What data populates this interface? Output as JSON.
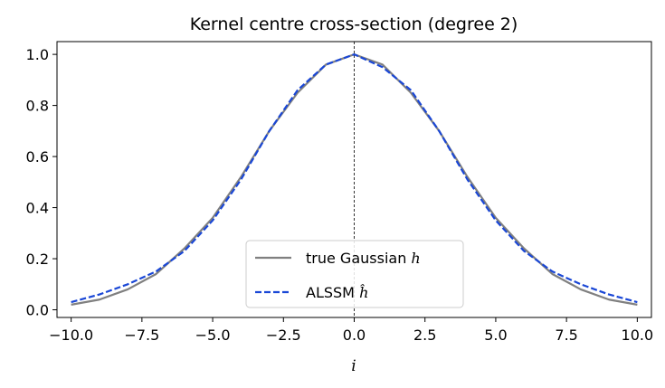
{
  "chart_data": {
    "type": "line",
    "title": "Kernel centre cross-section (degree 2)",
    "xlabel": "i",
    "ylabel": "",
    "xlim": [
      -10.5,
      10.5
    ],
    "ylim": [
      -0.03,
      1.05
    ],
    "xticks": [
      -10.0,
      -7.5,
      -5.0,
      -2.5,
      0.0,
      2.5,
      5.0,
      7.5,
      10.0
    ],
    "xtick_labels": [
      "−10.0",
      "−7.5",
      "−5.0",
      "−2.5",
      "0.0",
      "2.5",
      "5.0",
      "7.5",
      "10.0"
    ],
    "yticks": [
      0.0,
      0.2,
      0.4,
      0.6,
      0.8,
      1.0
    ],
    "ytick_labels": [
      "0.0",
      "0.2",
      "0.4",
      "0.6",
      "0.8",
      "1.0"
    ],
    "grid": false,
    "legend_position": "lower-center",
    "vline_x": 0,
    "x": [
      -10,
      -9,
      -8,
      -7,
      -6,
      -5,
      -4,
      -3,
      -2,
      -1,
      0,
      1,
      2,
      3,
      4,
      5,
      6,
      7,
      8,
      9,
      10
    ],
    "series": [
      {
        "name": "true Gaussian h",
        "legend_main": "true Gaussian ",
        "legend_math": "h",
        "style": "solid",
        "color": "#808080",
        "values": [
          0.02,
          0.04,
          0.08,
          0.14,
          0.24,
          0.36,
          0.52,
          0.7,
          0.85,
          0.96,
          1.0,
          0.96,
          0.85,
          0.7,
          0.52,
          0.36,
          0.24,
          0.14,
          0.08,
          0.04,
          0.02
        ]
      },
      {
        "name": "ALSSM ĥ",
        "legend_main": "ALSSM ",
        "legend_math": "ĥ",
        "style": "dashed",
        "color": "#1a47d6",
        "values": [
          0.03,
          0.06,
          0.1,
          0.15,
          0.23,
          0.35,
          0.51,
          0.7,
          0.86,
          0.96,
          1.0,
          0.95,
          0.86,
          0.7,
          0.51,
          0.35,
          0.23,
          0.15,
          0.1,
          0.06,
          0.03
        ]
      }
    ]
  }
}
